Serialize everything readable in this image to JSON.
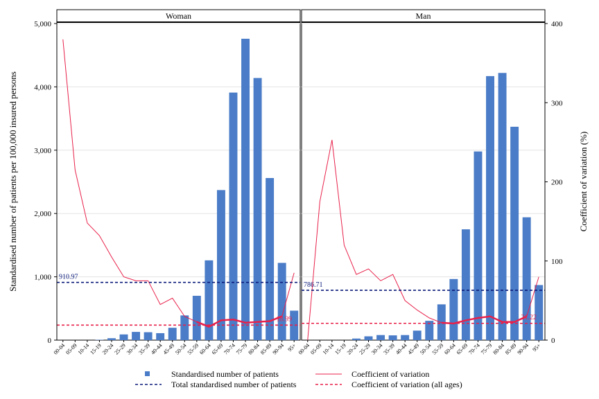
{
  "chart_data": {
    "type": "bar",
    "categories": [
      "00-04",
      "05-09",
      "10-14",
      "15-19",
      "20-24",
      "25-29",
      "30-34",
      "35-39",
      "40-44",
      "45-49",
      "50-54",
      "55-59",
      "60-64",
      "65-69",
      "70-74",
      "75-79",
      "80-84",
      "85-89",
      "90-94",
      "95+"
    ],
    "ylabel_left": "Standardised number of patients per 100,000 insured persons",
    "ylabel_right": "Coefficient of variation (%)",
    "ylim_left": [
      0,
      5000
    ],
    "ylim_right": [
      0,
      400
    ],
    "yticks_left": [
      "0",
      "1,000",
      "2,000",
      "3,000",
      "4,000",
      "5,000"
    ],
    "yticks_right": [
      "0",
      "100",
      "200",
      "300",
      "400"
    ],
    "grid": true,
    "legend_position": "bottom",
    "panels": [
      {
        "name": "Woman",
        "bars": [
          0,
          0,
          0,
          5,
          30,
          90,
          130,
          125,
          110,
          195,
          390,
          700,
          1260,
          2370,
          3910,
          4760,
          4140,
          2560,
          1220,
          465
        ],
        "cv": [
          380,
          215,
          148,
          132,
          105,
          80,
          75,
          75,
          45,
          53,
          30,
          23,
          17,
          25,
          26,
          22,
          23,
          24,
          30,
          85
        ],
        "cv_bold_from_index": 11,
        "total_line": 910.97,
        "total_label": "910.97",
        "cv_all": 18.99,
        "cv_all_label": "18.99"
      },
      {
        "name": "Man",
        "bars": [
          0,
          0,
          0,
          0,
          25,
          60,
          80,
          75,
          80,
          150,
          305,
          565,
          965,
          1750,
          2980,
          4170,
          4220,
          3370,
          1940,
          870
        ],
        "cv": [
          0,
          175,
          253,
          120,
          83,
          90,
          75,
          83,
          50,
          38,
          28,
          22,
          21,
          25,
          28,
          30,
          23,
          23,
          30,
          80
        ],
        "cv_bold_from_index": 11,
        "total_line": 786.71,
        "total_label": "786.71",
        "cv_all": 21.22,
        "cv_all_label": "21.22"
      }
    ],
    "legend": [
      {
        "label": "Standardised number of patients",
        "kind": "bar",
        "color": "#4a7cc7"
      },
      {
        "label": "Coefficient of variation",
        "kind": "line",
        "color": "#e8204a"
      },
      {
        "label": "Total standardised number of patients",
        "kind": "dash",
        "color": "#0a1a7a"
      },
      {
        "label": "Coefficient of variation (all ages)",
        "kind": "dash",
        "color": "#e8204a"
      }
    ],
    "colors": {
      "bar": "#4a7cc7",
      "cv": "#e8204a",
      "total": "#0a1a7a",
      "cv_all": "#e8204a"
    }
  }
}
